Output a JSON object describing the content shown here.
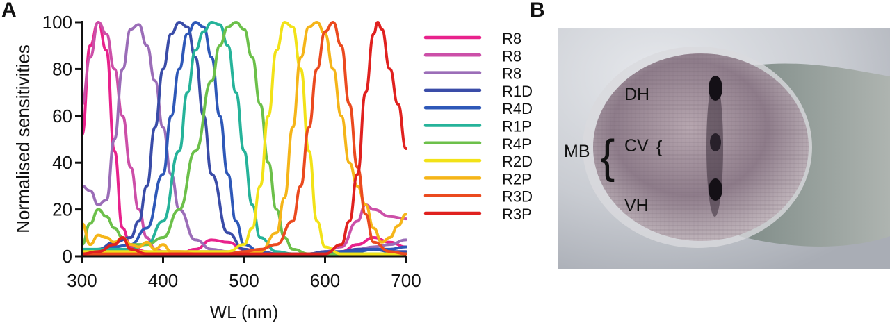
{
  "panels": {
    "a_letter": "A",
    "b_letter": "B"
  },
  "chart_data": {
    "type": "line",
    "xlabel": "WL (nm)",
    "ylabel": "Normalised sensitivities",
    "xlim": [
      300,
      700
    ],
    "ylim": [
      0,
      100
    ],
    "xticks": [
      300,
      400,
      500,
      600,
      700
    ],
    "yticks": [
      0,
      20,
      40,
      60,
      80,
      100
    ],
    "grid": false,
    "legend_position": "right",
    "series": [
      {
        "name": "R8",
        "color": "#E8228C",
        "x": [
          300,
          310,
          320,
          330,
          340,
          350,
          360,
          380,
          400,
          420,
          440,
          460,
          480,
          500,
          520,
          540,
          560,
          580,
          600,
          620,
          640,
          660,
          680,
          700
        ],
        "y": [
          52,
          90,
          100,
          88,
          45,
          12,
          4,
          2,
          1,
          1,
          3,
          7,
          6,
          3,
          2,
          1,
          1,
          1,
          1,
          2,
          5,
          8,
          6,
          4
        ]
      },
      {
        "name": "R8",
        "color": "#CC4FA8",
        "x": [
          300,
          310,
          320,
          330,
          340,
          350,
          360,
          370,
          380,
          390,
          400,
          420,
          440,
          460,
          480,
          500,
          520,
          540,
          560,
          580,
          600,
          620,
          640,
          650,
          660,
          680,
          700
        ],
        "y": [
          65,
          85,
          100,
          95,
          80,
          60,
          38,
          20,
          8,
          3,
          2,
          2,
          2,
          2,
          1,
          1,
          1,
          1,
          1,
          1,
          2,
          4,
          15,
          22,
          20,
          17,
          16
        ]
      },
      {
        "name": "R8",
        "color": "#9B6DB8",
        "x": [
          300,
          310,
          320,
          330,
          340,
          350,
          360,
          370,
          380,
          390,
          400,
          410,
          420,
          440,
          460,
          480,
          500,
          520,
          540,
          560,
          580,
          600,
          620,
          640,
          660,
          680,
          700
        ],
        "y": [
          30,
          28,
          22,
          24,
          50,
          80,
          97,
          99,
          90,
          75,
          55,
          35,
          20,
          7,
          3,
          2,
          1,
          1,
          1,
          1,
          1,
          1,
          2,
          3,
          4,
          5,
          7
        ]
      },
      {
        "name": "R1D",
        "color": "#3A4CA8",
        "x": [
          300,
          320,
          340,
          360,
          370,
          380,
          390,
          400,
          410,
          420,
          430,
          440,
          450,
          460,
          480,
          500,
          520,
          540,
          560,
          580,
          600,
          620,
          640,
          660,
          680,
          700
        ],
        "y": [
          2,
          3,
          6,
          8,
          15,
          30,
          55,
          80,
          95,
          100,
          98,
          85,
          60,
          35,
          10,
          3,
          1,
          1,
          1,
          1,
          2,
          2,
          3,
          3,
          2,
          2
        ]
      },
      {
        "name": "R4D",
        "color": "#2E58B8",
        "x": [
          300,
          320,
          340,
          360,
          380,
          400,
          410,
          420,
          430,
          440,
          450,
          460,
          470,
          480,
          490,
          500,
          520,
          540,
          560,
          580,
          600,
          620,
          640,
          660,
          680,
          700
        ],
        "y": [
          1,
          2,
          4,
          5,
          12,
          35,
          60,
          80,
          95,
          100,
          98,
          85,
          60,
          35,
          15,
          5,
          2,
          1,
          1,
          1,
          1,
          2,
          2,
          3,
          3,
          4
        ]
      },
      {
        "name": "R1P",
        "color": "#26B39A",
        "x": [
          300,
          320,
          340,
          360,
          380,
          400,
          420,
          430,
          440,
          450,
          460,
          470,
          480,
          490,
          500,
          510,
          520,
          540,
          560,
          580,
          600,
          620,
          640,
          660,
          680,
          700
        ],
        "y": [
          3,
          3,
          3,
          3,
          5,
          15,
          45,
          70,
          88,
          96,
          100,
          99,
          90,
          70,
          45,
          22,
          8,
          2,
          1,
          1,
          1,
          1,
          1,
          1,
          1,
          1
        ]
      },
      {
        "name": "R4P",
        "color": "#6CC04A",
        "x": [
          300,
          310,
          320,
          330,
          340,
          350,
          360,
          380,
          400,
          420,
          440,
          460,
          470,
          480,
          490,
          500,
          510,
          520,
          530,
          540,
          550,
          560,
          580,
          600,
          620,
          640,
          660,
          680,
          700
        ],
        "y": [
          5,
          14,
          20,
          17,
          12,
          8,
          5,
          5,
          8,
          20,
          45,
          75,
          90,
          98,
          100,
          97,
          85,
          65,
          40,
          20,
          8,
          3,
          1,
          1,
          1,
          1,
          1,
          1,
          1
        ]
      },
      {
        "name": "R2D",
        "color": "#F2E218",
        "x": [
          300,
          320,
          340,
          360,
          380,
          400,
          420,
          440,
          460,
          480,
          500,
          510,
          520,
          530,
          540,
          550,
          560,
          570,
          580,
          590,
          600,
          620,
          640,
          660,
          680,
          700
        ],
        "y": [
          2,
          2,
          2,
          2,
          2,
          2,
          2,
          2,
          2,
          2,
          5,
          12,
          30,
          60,
          88,
          100,
          98,
          80,
          45,
          15,
          4,
          1,
          1,
          1,
          1,
          1
        ]
      },
      {
        "name": "R2P",
        "color": "#F5B519",
        "x": [
          300,
          310,
          320,
          330,
          340,
          350,
          360,
          370,
          380,
          390,
          400,
          410,
          420,
          440,
          460,
          480,
          500,
          520,
          540,
          550,
          560,
          570,
          580,
          590,
          600,
          610,
          620,
          630,
          640,
          650,
          660,
          670,
          680,
          690,
          700
        ],
        "y": [
          14,
          5,
          9,
          8,
          6,
          8,
          5,
          4,
          6,
          3,
          5,
          2,
          2,
          1,
          1,
          1,
          1,
          2,
          10,
          25,
          55,
          85,
          98,
          100,
          95,
          80,
          60,
          40,
          30,
          22,
          12,
          6,
          8,
          13,
          18
        ]
      },
      {
        "name": "R3D",
        "color": "#EB4A1F",
        "x": [
          300,
          320,
          340,
          360,
          380,
          400,
          420,
          440,
          460,
          480,
          500,
          520,
          540,
          560,
          570,
          580,
          590,
          600,
          610,
          620,
          630,
          640,
          650,
          660,
          680,
          700
        ],
        "y": [
          1,
          1,
          1,
          1,
          1,
          1,
          1,
          1,
          1,
          1,
          2,
          3,
          5,
          15,
          30,
          55,
          80,
          96,
          100,
          90,
          65,
          38,
          18,
          6,
          2,
          1
        ]
      },
      {
        "name": "R3P",
        "color": "#E0211F",
        "x": [
          300,
          320,
          340,
          350,
          360,
          380,
          400,
          420,
          440,
          460,
          480,
          500,
          520,
          540,
          560,
          580,
          600,
          620,
          630,
          640,
          650,
          660,
          665,
          670,
          680,
          690,
          700
        ],
        "y": [
          1,
          2,
          5,
          8,
          3,
          1,
          1,
          1,
          1,
          1,
          1,
          1,
          1,
          1,
          1,
          1,
          1,
          5,
          15,
          35,
          70,
          95,
          100,
          97,
          80,
          65,
          46
        ]
      }
    ]
  },
  "photo": {
    "labels": {
      "dh": "DH",
      "cv": "CV",
      "mb": "MB",
      "vh": "VH"
    }
  }
}
